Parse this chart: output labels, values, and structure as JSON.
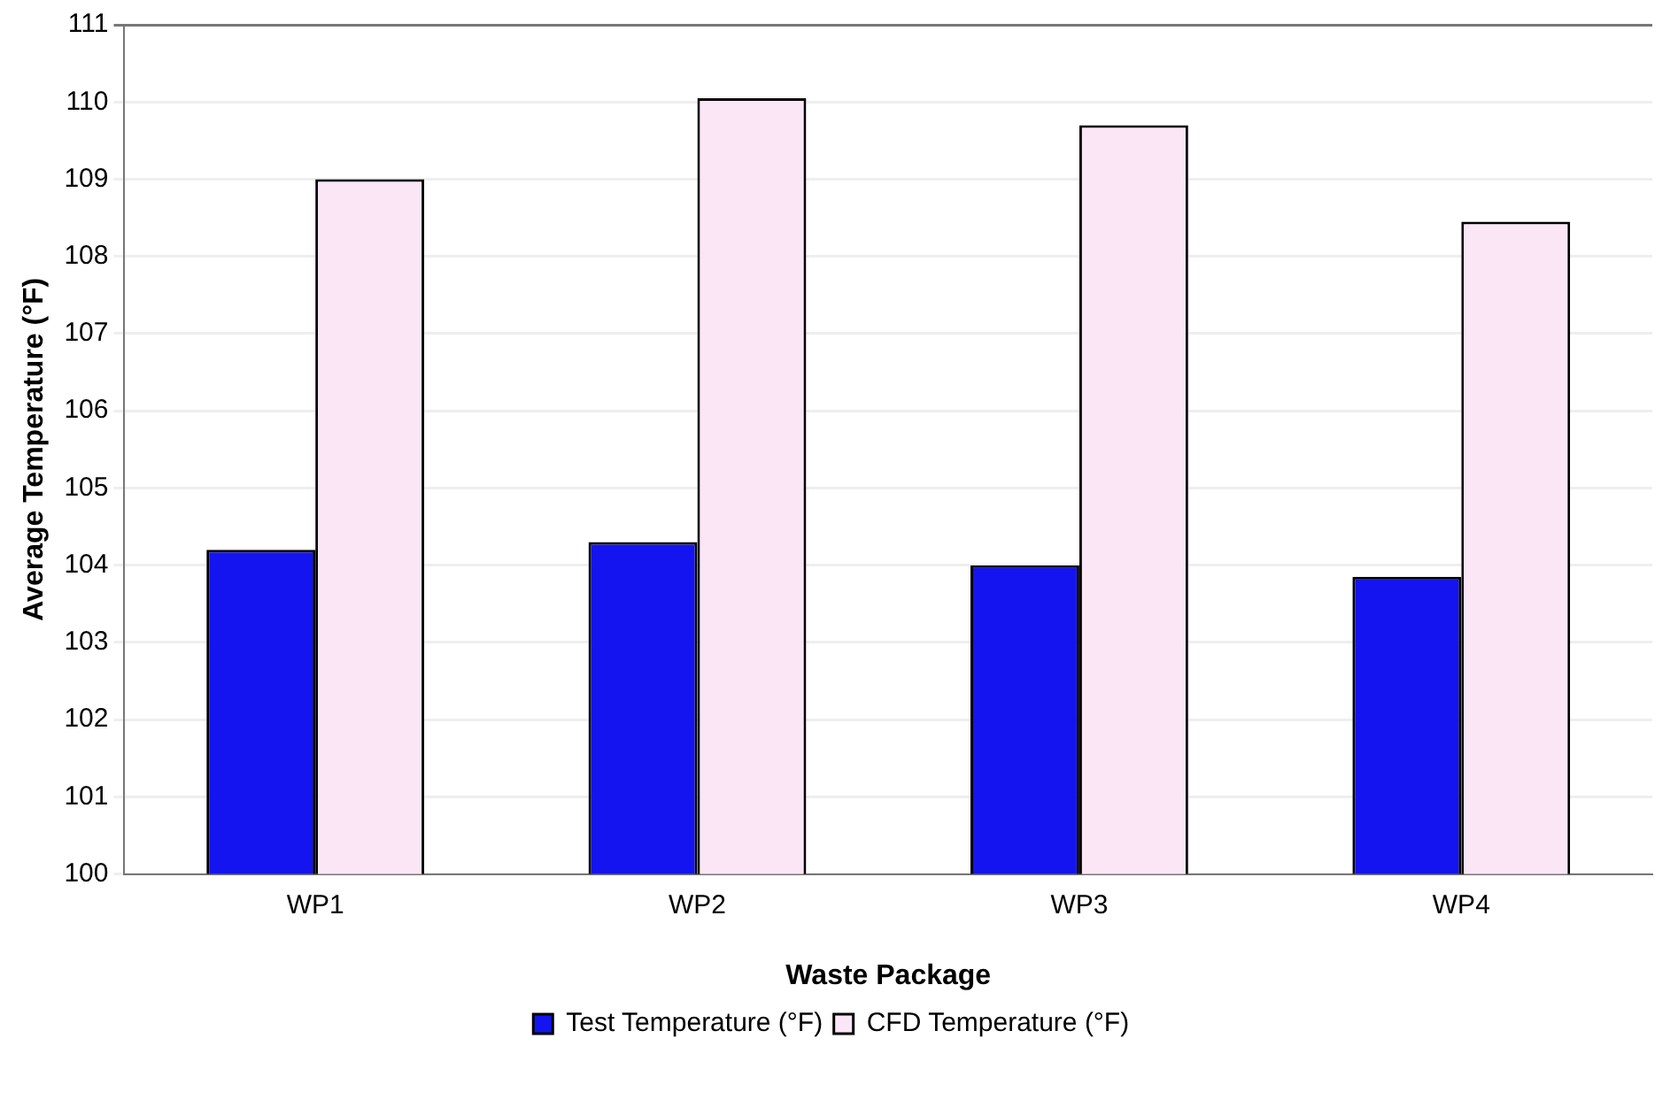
{
  "chart_data": {
    "type": "bar",
    "xlabel": "Waste Package",
    "ylabel": "Average Temperature (°F)",
    "categories": [
      "WP1",
      "WP2",
      "WP3",
      "WP4"
    ],
    "series": [
      {
        "name": "Test Temperature (°F)",
        "color": "#1414f0",
        "values": [
          104.2,
          104.3,
          104.0,
          103.85
        ]
      },
      {
        "name": "CFD Temperature (°F)",
        "color": "#fbe6f6",
        "values": [
          109.0,
          110.05,
          109.7,
          108.45
        ]
      }
    ],
    "ylim": [
      100,
      111
    ],
    "yticks": [
      100,
      101,
      102,
      103,
      104,
      105,
      106,
      107,
      108,
      109,
      110,
      111
    ],
    "grid": "y",
    "legend": "bottom"
  }
}
